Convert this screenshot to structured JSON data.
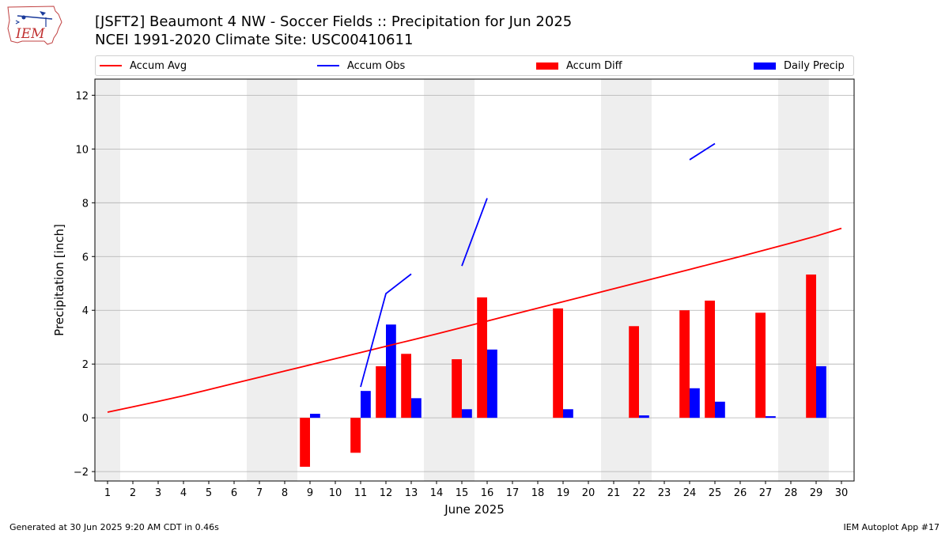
{
  "header": {
    "title_line1": "[JSFT2] Beaumont 4 NW - Soccer Fields :: Precipitation for Jun 2025",
    "title_line2": "NCEI 1991-2020 Climate Site: USC00410611"
  },
  "logo": {
    "text": "IEM"
  },
  "footer": {
    "left": "Generated at 30 Jun 2025 9:20 AM CDT in 0.46s",
    "right": "IEM Autoplot App #17"
  },
  "colors": {
    "accum_avg": "#ff0000",
    "accum_obs": "#0000ff",
    "accum_diff": "#ff0000",
    "daily_precip": "#0000ff",
    "weekend_shade": "#eeeeee",
    "grid": "#b0b0b0"
  },
  "chart_data": {
    "type": "bar",
    "xlabel": "June 2025",
    "ylabel": "Precipitation [inch]",
    "xlim": [
      0.5,
      30.5
    ],
    "ylim": [
      -2.35,
      12.6
    ],
    "yticks": [
      -2,
      0,
      2,
      4,
      6,
      8,
      10,
      12
    ],
    "xticks": [
      1,
      2,
      3,
      4,
      5,
      6,
      7,
      8,
      9,
      10,
      11,
      12,
      13,
      14,
      15,
      16,
      17,
      18,
      19,
      20,
      21,
      22,
      23,
      24,
      25,
      26,
      27,
      28,
      29,
      30
    ],
    "grid": "y",
    "legend_position": "top",
    "weekend_days": [
      1,
      7,
      8,
      14,
      15,
      21,
      22,
      28,
      29
    ],
    "legend": [
      "Accum Avg",
      "Accum Obs",
      "Accum Diff",
      "Daily Precip"
    ],
    "series": [
      {
        "name": "Accum Avg",
        "kind": "line",
        "x": [
          1,
          2,
          3,
          4,
          5,
          6,
          7,
          8,
          9,
          10,
          11,
          12,
          13,
          14,
          15,
          16,
          17,
          18,
          19,
          20,
          21,
          22,
          23,
          24,
          25,
          26,
          27,
          28,
          29,
          30
        ],
        "values": [
          0.21,
          0.41,
          0.61,
          0.82,
          1.05,
          1.28,
          1.51,
          1.74,
          1.97,
          2.2,
          2.43,
          2.66,
          2.89,
          3.12,
          3.36,
          3.6,
          3.84,
          4.08,
          4.32,
          4.56,
          4.8,
          5.04,
          5.28,
          5.52,
          5.76,
          6.0,
          6.25,
          6.5,
          6.76,
          7.05
        ]
      },
      {
        "name": "Accum Obs",
        "kind": "line",
        "segments": [
          {
            "x": [
              11,
              12,
              13
            ],
            "values": [
              1.15,
              4.62,
              5.35
            ]
          },
          {
            "x": [
              15,
              16
            ],
            "values": [
              5.65,
              8.17
            ]
          },
          {
            "x": [
              24,
              25
            ],
            "values": [
              9.6,
              10.2
            ]
          }
        ]
      },
      {
        "name": "Accum Diff",
        "kind": "bar",
        "x": [
          9,
          11,
          12,
          13,
          15,
          16,
          19,
          22,
          24,
          25,
          27,
          29
        ],
        "values": [
          -1.82,
          -1.3,
          1.92,
          2.38,
          2.18,
          4.48,
          4.07,
          3.41,
          4.0,
          4.36,
          3.91,
          5.33
        ]
      },
      {
        "name": "Daily Precip",
        "kind": "bar",
        "x": [
          9,
          11,
          12,
          13,
          15,
          16,
          19,
          22,
          24,
          25,
          27,
          29
        ],
        "values": [
          0.15,
          1.0,
          3.47,
          0.73,
          0.32,
          2.54,
          0.32,
          0.09,
          1.1,
          0.6,
          0.06,
          1.92
        ]
      }
    ]
  }
}
